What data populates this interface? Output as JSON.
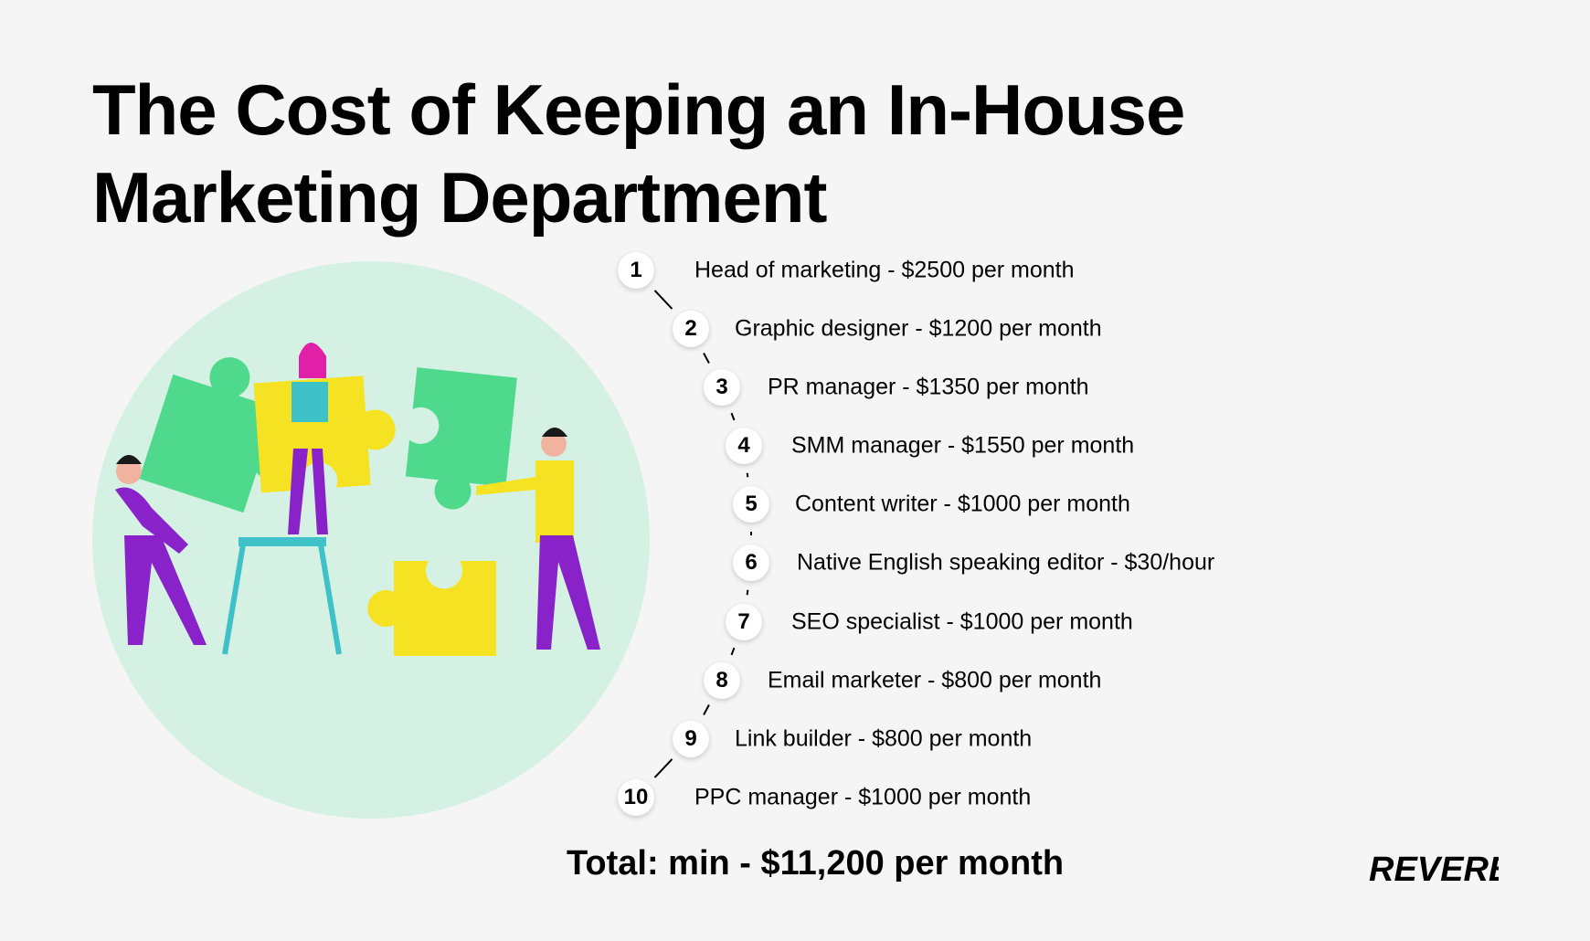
{
  "title": {
    "line1": "The Cost of Keeping an In-House",
    "line2": "Marketing Department"
  },
  "steps": [
    {
      "number": "1",
      "label": "Head of marketing - $2500 per month"
    },
    {
      "number": "2",
      "label": "Graphic designer - $1200 per month"
    },
    {
      "number": "3",
      "label": "PR manager - $1350 per month"
    },
    {
      "number": "4",
      "label": "SMM manager - $1550 per month"
    },
    {
      "number": "5",
      "label": "Content writer - $1000 per month"
    },
    {
      "number": "6",
      "label": "Native English speaking editor - $30/hour"
    },
    {
      "number": "7",
      "label": "SEO specialist - $1000 per month"
    },
    {
      "number": "8",
      "label": "Email marketer - $800 per month"
    },
    {
      "number": "9",
      "label": "Link builder - $800 per month"
    },
    {
      "number": "10",
      "label": "PPC manager - $1000 per month"
    }
  ],
  "total": "Total: min - $11,200 per month",
  "logo_text": "REVERB",
  "colors": {
    "background": "#f5f5f5",
    "circle": "#d5f1e3",
    "puzzle_green": "#4fd98d",
    "puzzle_yellow": "#f5e223",
    "purple": "#8a22c9",
    "teal": "#3fc1c9",
    "pink": "#e21fa7"
  },
  "icons": [
    "puzzle-team-illustration",
    "reverb-logo"
  ]
}
